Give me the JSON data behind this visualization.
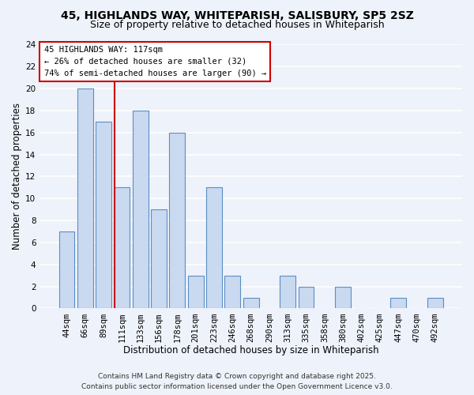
{
  "title": "45, HIGHLANDS WAY, WHITEPARISH, SALISBURY, SP5 2SZ",
  "subtitle": "Size of property relative to detached houses in Whiteparish",
  "xlabel": "Distribution of detached houses by size in Whiteparish",
  "ylabel": "Number of detached properties",
  "bar_labels": [
    "44sqm",
    "66sqm",
    "89sqm",
    "111sqm",
    "133sqm",
    "156sqm",
    "178sqm",
    "201sqm",
    "223sqm",
    "246sqm",
    "268sqm",
    "290sqm",
    "313sqm",
    "335sqm",
    "358sqm",
    "380sqm",
    "402sqm",
    "425sqm",
    "447sqm",
    "470sqm",
    "492sqm"
  ],
  "bar_values": [
    7,
    20,
    17,
    11,
    18,
    9,
    16,
    3,
    11,
    3,
    1,
    0,
    3,
    2,
    0,
    2,
    0,
    0,
    1,
    0,
    1
  ],
  "bar_color": "#c9d9f0",
  "bar_edge_color": "#5b8ec4",
  "vline_color": "#cc0000",
  "vline_x_index": 3,
  "ylim": [
    0,
    24
  ],
  "yticks": [
    0,
    2,
    4,
    6,
    8,
    10,
    12,
    14,
    16,
    18,
    20,
    22,
    24
  ],
  "annotation_title": "45 HIGHLANDS WAY: 117sqm",
  "annotation_line1": "← 26% of detached houses are smaller (32)",
  "annotation_line2": "74% of semi-detached houses are larger (90) →",
  "footer1": "Contains HM Land Registry data © Crown copyright and database right 2025.",
  "footer2": "Contains public sector information licensed under the Open Government Licence v3.0.",
  "bg_color": "#eef2fa",
  "grid_color": "#ffffff",
  "title_fontsize": 10,
  "subtitle_fontsize": 9,
  "axis_label_fontsize": 8.5,
  "tick_fontsize": 7.5,
  "annotation_fontsize": 7.5,
  "footer_fontsize": 6.5
}
